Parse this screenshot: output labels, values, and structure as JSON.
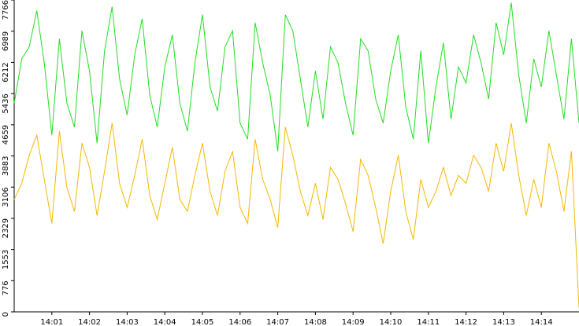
{
  "chart_data": {
    "type": "line",
    "x": [
      840,
      840.2,
      840.4,
      840.6,
      840.8,
      841,
      841.2,
      841.4,
      841.6,
      841.8,
      842,
      842.2,
      842.4,
      842.6,
      842.8,
      843,
      843.2,
      843.4,
      843.6,
      843.8,
      844,
      844.2,
      844.4,
      844.6,
      844.8,
      845,
      845.2,
      845.4,
      845.6,
      845.8,
      846,
      846.2,
      846.4,
      846.6,
      846.8,
      847,
      847.2,
      847.4,
      847.6,
      847.8,
      848,
      848.2,
      848.4,
      848.6,
      848.8,
      849,
      849.2,
      849.4,
      849.6,
      849.8,
      850,
      850.2,
      850.4,
      850.6,
      850.8,
      851,
      851.2,
      851.4,
      851.6,
      851.8,
      852,
      852.2,
      852.4,
      852.6,
      852.8,
      853,
      853.2,
      853.4,
      853.6,
      853.8,
      854,
      854.2,
      854.4,
      854.6,
      854.8,
      855
    ],
    "series": [
      {
        "color": "#22dd22",
        "values": [
          5200,
          6300,
          6600,
          7500,
          6200,
          4400,
          6800,
          5200,
          4600,
          7000,
          6000,
          4200,
          6500,
          7600,
          5800,
          4900,
          6400,
          7300,
          5400,
          4600,
          6100,
          6900,
          5200,
          4500,
          6200,
          7400,
          5600,
          5000,
          6600,
          7000,
          4700,
          4300,
          7200,
          6200,
          5400,
          4000,
          7400,
          7000,
          5800,
          4600,
          6000,
          4800,
          6600,
          6200,
          5200,
          4400,
          6800,
          6500,
          5300,
          4700,
          6000,
          6900,
          5100,
          4300,
          6500,
          4200,
          5600,
          6700,
          4800,
          6100,
          5700,
          6900,
          6200,
          5300,
          7200,
          6400,
          7700,
          5900,
          4700,
          6300,
          5600,
          7000,
          5900,
          4800,
          6800,
          4700
        ]
      },
      {
        "color": "#f5b800",
        "values": [
          2800,
          3200,
          3900,
          4400,
          3300,
          2200,
          4500,
          3100,
          2500,
          4200,
          3600,
          2400,
          3500,
          4700,
          3200,
          2600,
          3400,
          4300,
          2900,
          2300,
          3200,
          4100,
          2800,
          2500,
          3400,
          4200,
          3000,
          2400,
          3500,
          4000,
          2600,
          2200,
          4300,
          3300,
          2800,
          2100,
          4600,
          3900,
          3000,
          2400,
          3200,
          2300,
          3600,
          3300,
          2700,
          2000,
          3800,
          3400,
          2600,
          1700,
          3000,
          3900,
          2500,
          1800,
          3300,
          2600,
          3000,
          3600,
          2900,
          3400,
          3200,
          3900,
          3600,
          3000,
          4200,
          3500,
          4700,
          3400,
          2400,
          3300,
          2600,
          4200,
          3500,
          2500,
          4000,
          100
        ]
      }
    ],
    "xlim": [
      840,
      855
    ],
    "xticks": [
      {
        "value": 841,
        "label": "14:01"
      },
      {
        "value": 842,
        "label": "14:02"
      },
      {
        "value": 843,
        "label": "14:03"
      },
      {
        "value": 844,
        "label": "14:04"
      },
      {
        "value": 845,
        "label": "14:05"
      },
      {
        "value": 846,
        "label": "14:06"
      },
      {
        "value": 847,
        "label": "14:07"
      },
      {
        "value": 848,
        "label": "14:08"
      },
      {
        "value": 849,
        "label": "14:09"
      },
      {
        "value": 850,
        "label": "14:10"
      },
      {
        "value": 851,
        "label": "14:11"
      },
      {
        "value": 852,
        "label": "14:12"
      },
      {
        "value": 853,
        "label": "14:13"
      },
      {
        "value": 854,
        "label": "14:14"
      }
    ],
    "ylim": [
      0,
      7766
    ],
    "yticks": [
      0,
      776,
      1553,
      2329,
      3106,
      3883,
      4659,
      5436,
      6212,
      6989,
      7766
    ]
  }
}
